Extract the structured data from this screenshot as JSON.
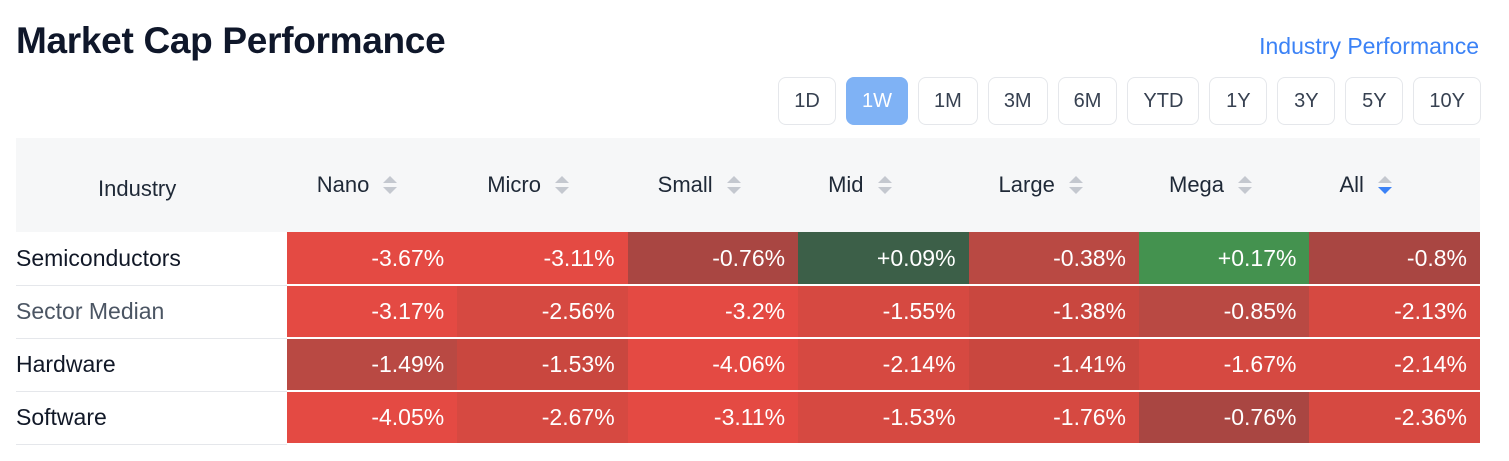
{
  "header": {
    "title": "Market Cap Performance",
    "link_label": "Industry Performance"
  },
  "periods": [
    "1D",
    "1W",
    "1M",
    "3M",
    "6M",
    "YTD",
    "1Y",
    "3Y",
    "5Y",
    "10Y"
  ],
  "active_period": "1W",
  "table": {
    "columns": [
      "Industry",
      "Nano",
      "Micro",
      "Small",
      "Mid",
      "Large",
      "Mega",
      "All"
    ],
    "active_sort_column": "All",
    "rows": [
      {
        "name": "Semiconductors",
        "values": [
          "-3.67%",
          "-3.11%",
          "-0.76%",
          "+0.09%",
          "-0.38%",
          "+0.17%",
          "-0.8%"
        ]
      },
      {
        "name": "Sector Median",
        "values": [
          "-3.17%",
          "-2.56%",
          "-3.2%",
          "-1.55%",
          "-1.38%",
          "-0.85%",
          "-2.13%"
        ]
      },
      {
        "name": "Hardware",
        "values": [
          "-1.49%",
          "-1.53%",
          "-4.06%",
          "-2.14%",
          "-1.41%",
          "-1.67%",
          "-2.14%"
        ]
      },
      {
        "name": "Software",
        "values": [
          "-4.05%",
          "-2.67%",
          "-3.11%",
          "-1.53%",
          "-1.76%",
          "-0.76%",
          "-2.36%"
        ]
      }
    ]
  },
  "colors": {
    "link": "#3b82f6",
    "active_period_bg": "#7fb2f5",
    "red_strong": "#e44a43",
    "red_dark": "#a94642",
    "green_dark": "#3c5f48",
    "green": "#44924f"
  }
}
